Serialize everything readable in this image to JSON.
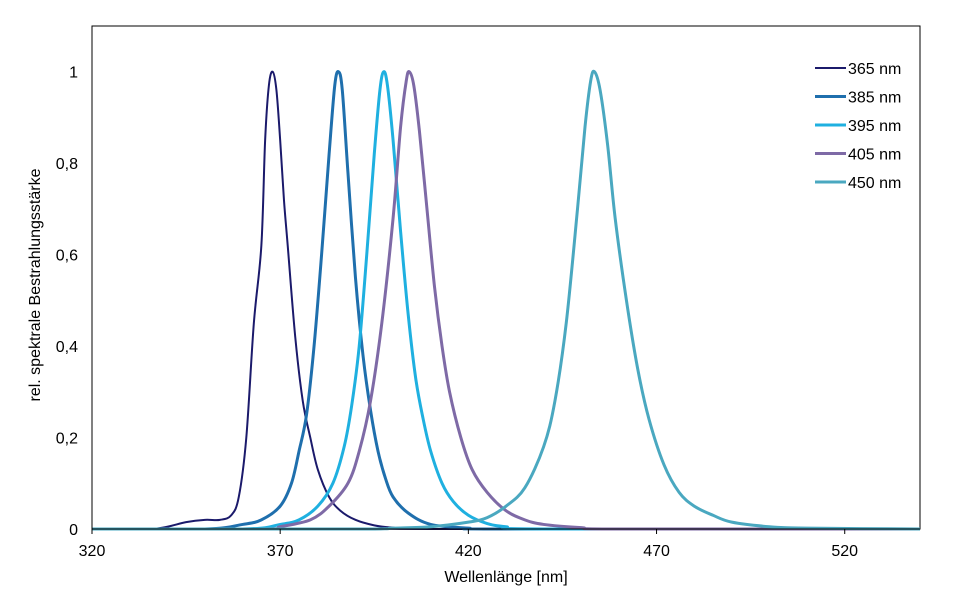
{
  "chart_data": {
    "type": "line",
    "title": "",
    "xlabel": "Wellenlänge [nm]",
    "ylabel": "rel. spektrale Bestrahlungsstärke",
    "xlim": [
      320,
      540
    ],
    "ylim": [
      0,
      1.1
    ],
    "xticks": [
      320,
      370,
      420,
      470,
      520
    ],
    "xtick_labels": [
      "320",
      "370",
      "420",
      "470",
      "520"
    ],
    "yticks": [
      0,
      0.2,
      0.4,
      0.6,
      0.8,
      1
    ],
    "ytick_labels": [
      "0",
      "0,2",
      "0,4",
      "0,6",
      "0,8",
      "1"
    ],
    "grid": false,
    "legend_position": "top-right",
    "series": [
      {
        "name": "365 nm",
        "color": "#1b1a6b",
        "points": [
          [
            320,
            0
          ],
          [
            335,
            0
          ],
          [
            340,
            0.005
          ],
          [
            345,
            0.015
          ],
          [
            350,
            0.02
          ],
          [
            354,
            0.02
          ],
          [
            357,
            0.03
          ],
          [
            359,
            0.07
          ],
          [
            361,
            0.2
          ],
          [
            363,
            0.45
          ],
          [
            365,
            0.62
          ],
          [
            366,
            0.85
          ],
          [
            367,
            0.97
          ],
          [
            368,
            1.0
          ],
          [
            369,
            0.96
          ],
          [
            370,
            0.85
          ],
          [
            371,
            0.72
          ],
          [
            372,
            0.62
          ],
          [
            374,
            0.42
          ],
          [
            376,
            0.28
          ],
          [
            378,
            0.2
          ],
          [
            380,
            0.13
          ],
          [
            383,
            0.07
          ],
          [
            386,
            0.04
          ],
          [
            390,
            0.02
          ],
          [
            395,
            0.008
          ],
          [
            400,
            0.003
          ],
          [
            410,
            0
          ],
          [
            540,
            0
          ]
        ]
      },
      {
        "name": "385 nm",
        "color": "#1f6fad",
        "points": [
          [
            320,
            0
          ],
          [
            350,
            0
          ],
          [
            360,
            0.01
          ],
          [
            365,
            0.02
          ],
          [
            370,
            0.05
          ],
          [
            373,
            0.1
          ],
          [
            375,
            0.17
          ],
          [
            377,
            0.25
          ],
          [
            379,
            0.4
          ],
          [
            381,
            0.6
          ],
          [
            383,
            0.82
          ],
          [
            384.5,
            0.97
          ],
          [
            385.5,
            1.0
          ],
          [
            386.5,
            0.96
          ],
          [
            388,
            0.78
          ],
          [
            390,
            0.55
          ],
          [
            392,
            0.38
          ],
          [
            394,
            0.26
          ],
          [
            396,
            0.17
          ],
          [
            398,
            0.11
          ],
          [
            400,
            0.07
          ],
          [
            404,
            0.035
          ],
          [
            410,
            0.01
          ],
          [
            420,
            0.002
          ],
          [
            430,
            0
          ],
          [
            540,
            0
          ]
        ]
      },
      {
        "name": "395 nm",
        "color": "#1fb0e0",
        "points": [
          [
            320,
            0
          ],
          [
            360,
            0
          ],
          [
            370,
            0.01
          ],
          [
            375,
            0.02
          ],
          [
            380,
            0.05
          ],
          [
            384,
            0.1
          ],
          [
            387,
            0.18
          ],
          [
            389,
            0.27
          ],
          [
            391,
            0.4
          ],
          [
            393,
            0.6
          ],
          [
            395,
            0.82
          ],
          [
            396.5,
            0.96
          ],
          [
            397.5,
            1.0
          ],
          [
            398.5,
            0.97
          ],
          [
            400,
            0.85
          ],
          [
            402,
            0.65
          ],
          [
            404,
            0.47
          ],
          [
            406,
            0.33
          ],
          [
            408,
            0.24
          ],
          [
            410,
            0.17
          ],
          [
            413,
            0.1
          ],
          [
            416,
            0.06
          ],
          [
            420,
            0.03
          ],
          [
            425,
            0.012
          ],
          [
            430,
            0.005
          ],
          [
            440,
            0
          ],
          [
            540,
            0
          ]
        ]
      },
      {
        "name": "405 nm",
        "color": "#7e6aa6",
        "points": [
          [
            320,
            0
          ],
          [
            365,
            0
          ],
          [
            370,
            0.005
          ],
          [
            378,
            0.02
          ],
          [
            383,
            0.05
          ],
          [
            388,
            0.1
          ],
          [
            391,
            0.17
          ],
          [
            394,
            0.28
          ],
          [
            397,
            0.45
          ],
          [
            400,
            0.68
          ],
          [
            402,
            0.88
          ],
          [
            403.5,
            0.98
          ],
          [
            404.3,
            1.0
          ],
          [
            405.5,
            0.97
          ],
          [
            407,
            0.87
          ],
          [
            409,
            0.7
          ],
          [
            411,
            0.53
          ],
          [
            413,
            0.4
          ],
          [
            415,
            0.3
          ],
          [
            418,
            0.2
          ],
          [
            421,
            0.13
          ],
          [
            425,
            0.08
          ],
          [
            430,
            0.04
          ],
          [
            435,
            0.02
          ],
          [
            440,
            0.01
          ],
          [
            450,
            0.003
          ],
          [
            460,
            0
          ],
          [
            540,
            0
          ]
        ]
      },
      {
        "name": "450 nm",
        "color": "#4aa8c0",
        "points": [
          [
            320,
            0
          ],
          [
            390,
            0
          ],
          [
            400,
            0.002
          ],
          [
            410,
            0.005
          ],
          [
            420,
            0.015
          ],
          [
            425,
            0.025
          ],
          [
            430,
            0.05
          ],
          [
            435,
            0.09
          ],
          [
            440,
            0.18
          ],
          [
            443,
            0.28
          ],
          [
            446,
            0.45
          ],
          [
            449,
            0.7
          ],
          [
            451,
            0.88
          ],
          [
            452.5,
            0.98
          ],
          [
            453.5,
            1.0
          ],
          [
            455,
            0.96
          ],
          [
            457,
            0.84
          ],
          [
            459,
            0.68
          ],
          [
            462,
            0.5
          ],
          [
            465,
            0.35
          ],
          [
            468,
            0.24
          ],
          [
            472,
            0.14
          ],
          [
            476,
            0.08
          ],
          [
            480,
            0.05
          ],
          [
            485,
            0.03
          ],
          [
            490,
            0.015
          ],
          [
            500,
            0.005
          ],
          [
            510,
            0.002
          ],
          [
            540,
            0
          ]
        ]
      }
    ]
  }
}
